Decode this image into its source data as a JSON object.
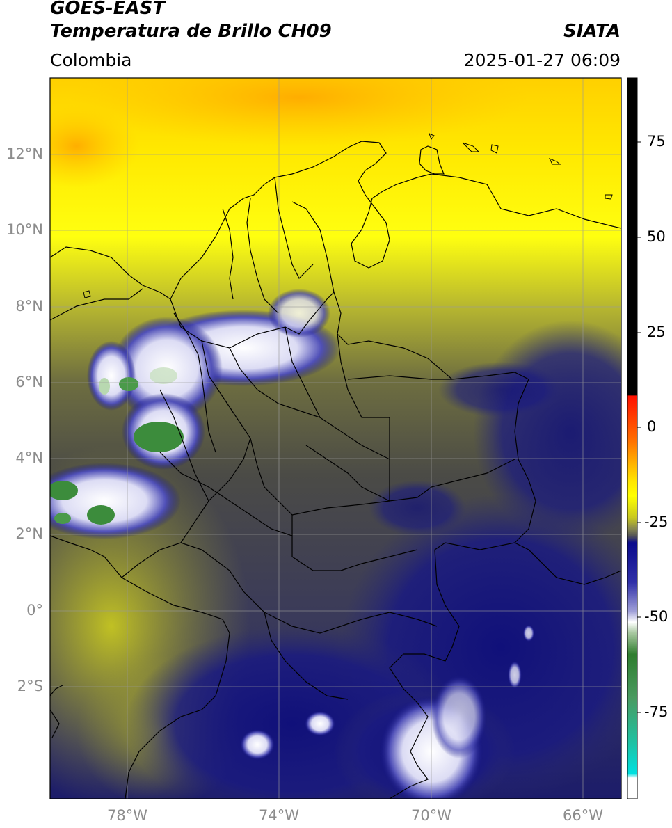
{
  "header": {
    "satellite": "GOES-EAST",
    "product": "Temperatura de Brillo CH09",
    "agency": "SIATA",
    "region": "Colombia",
    "datetime": "2025-01-27 06:09"
  },
  "map": {
    "lat_labels": [
      "12°N",
      "10°N",
      "8°N",
      "6°N",
      "4°N",
      "2°N",
      "0°",
      "2°S"
    ],
    "lon_labels": [
      "78°W",
      "74°W",
      "70°W",
      "66°W"
    ],
    "background_colors": {
      "yellow": "#ffff00",
      "orange": "#ffb000",
      "olive": "#8c8c2a",
      "gray": "#4b4b46",
      "navy": "#141478",
      "white": "#f4f4ff",
      "green": "#2e8b2e"
    }
  },
  "colorbar": {
    "tick_labels": [
      "75",
      "50",
      "25",
      "0",
      "-25",
      "-50",
      "-75"
    ],
    "colors": {
      "black": "#000000",
      "red": "#ff1400",
      "orange": "#ff8c00",
      "yellow": "#ffff00",
      "gray": "#555555",
      "navy": "#0a0a8c",
      "white": "#ffffff",
      "green": "#2e7d2e",
      "cyan": "#00e0e0"
    }
  }
}
